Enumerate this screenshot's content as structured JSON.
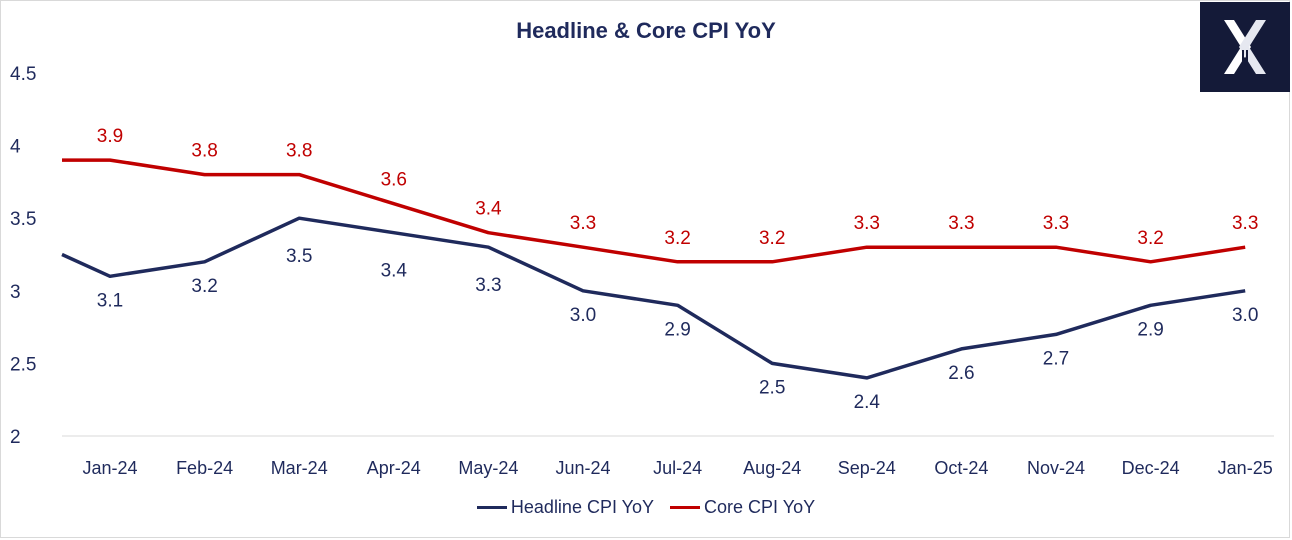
{
  "chart_data": {
    "type": "line",
    "title": "Headline & Core CPI YoY",
    "categories": [
      "Jan-24",
      "Feb-24",
      "Mar-24",
      "Apr-24",
      "May-24",
      "Jun-24",
      "Jul-24",
      "Aug-24",
      "Sep-24",
      "Oct-24",
      "Nov-24",
      "Dec-24",
      "Jan-25"
    ],
    "y_ticks": [
      "4.5",
      "4",
      "3.5",
      "3",
      "2.5",
      "2"
    ],
    "ylim": [
      2,
      4.5
    ],
    "series": [
      {
        "name": "Headline CPI YoY",
        "color": "#1f2a5c",
        "start_value": 3.25,
        "values": [
          3.1,
          3.2,
          3.5,
          3.4,
          3.3,
          3.0,
          2.9,
          2.5,
          2.4,
          2.6,
          2.7,
          2.9,
          3.0
        ],
        "labels": [
          "3.1",
          "3.2",
          "3.5",
          "3.4",
          "3.3",
          "3.0",
          "2.9",
          "2.5",
          "2.4",
          "2.6",
          "2.7",
          "2.9",
          "3.0"
        ]
      },
      {
        "name": "Core CPI YoY",
        "color": "#c00000",
        "start_value": 3.9,
        "values": [
          3.9,
          3.8,
          3.8,
          3.6,
          3.4,
          3.3,
          3.2,
          3.2,
          3.3,
          3.3,
          3.3,
          3.2,
          3.3
        ],
        "labels": [
          "3.9",
          "3.8",
          "3.8",
          "3.6",
          "3.4",
          "3.3",
          "3.2",
          "3.2",
          "3.3",
          "3.3",
          "3.3",
          "3.2",
          "3.3"
        ]
      }
    ],
    "legend": "bottom",
    "grid": false
  },
  "logo": {
    "color": "#141a38",
    "icon": "x-logo-icon"
  }
}
